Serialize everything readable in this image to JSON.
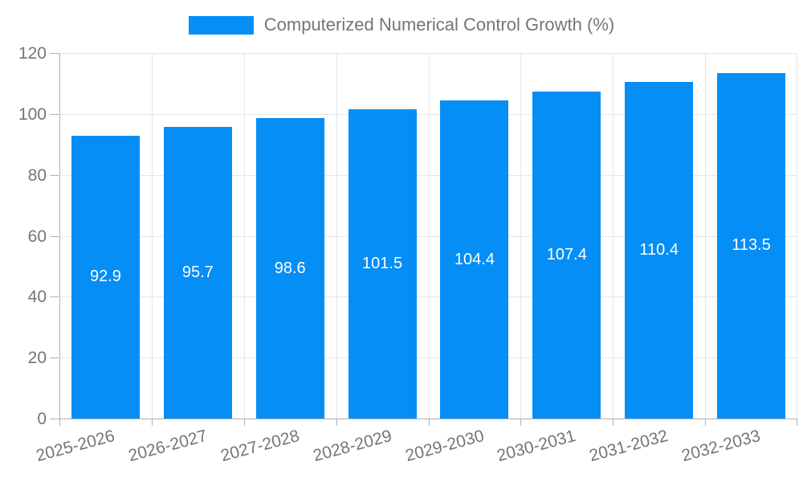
{
  "chart_data": {
    "type": "bar",
    "title": "Computerized Numerical Control Growth (%)",
    "categories": [
      "2025-2026",
      "2026-2027",
      "2027-2028",
      "2028-2029",
      "2029-2030",
      "2030-2031",
      "2031-2032",
      "2032-2033"
    ],
    "values": [
      92.9,
      95.7,
      98.6,
      101.5,
      104.4,
      107.4,
      110.4,
      113.5
    ],
    "value_labels": [
      "92.9",
      "95.7",
      "98.6",
      "101.5",
      "104.4",
      "107.4",
      "110.4",
      "113.5"
    ],
    "xlabel": "",
    "ylabel": "",
    "ylim": [
      0,
      120
    ],
    "yticks": [
      0,
      20,
      40,
      60,
      80,
      100,
      120
    ],
    "grid": true,
    "legend_position": "top-center",
    "colors": {
      "bar": "#058ef5",
      "bar_label": "#ffffff",
      "axis": "#b1b1b1",
      "grid": "#e6e6e6",
      "text": "#757575",
      "background": "#ffffff"
    }
  }
}
